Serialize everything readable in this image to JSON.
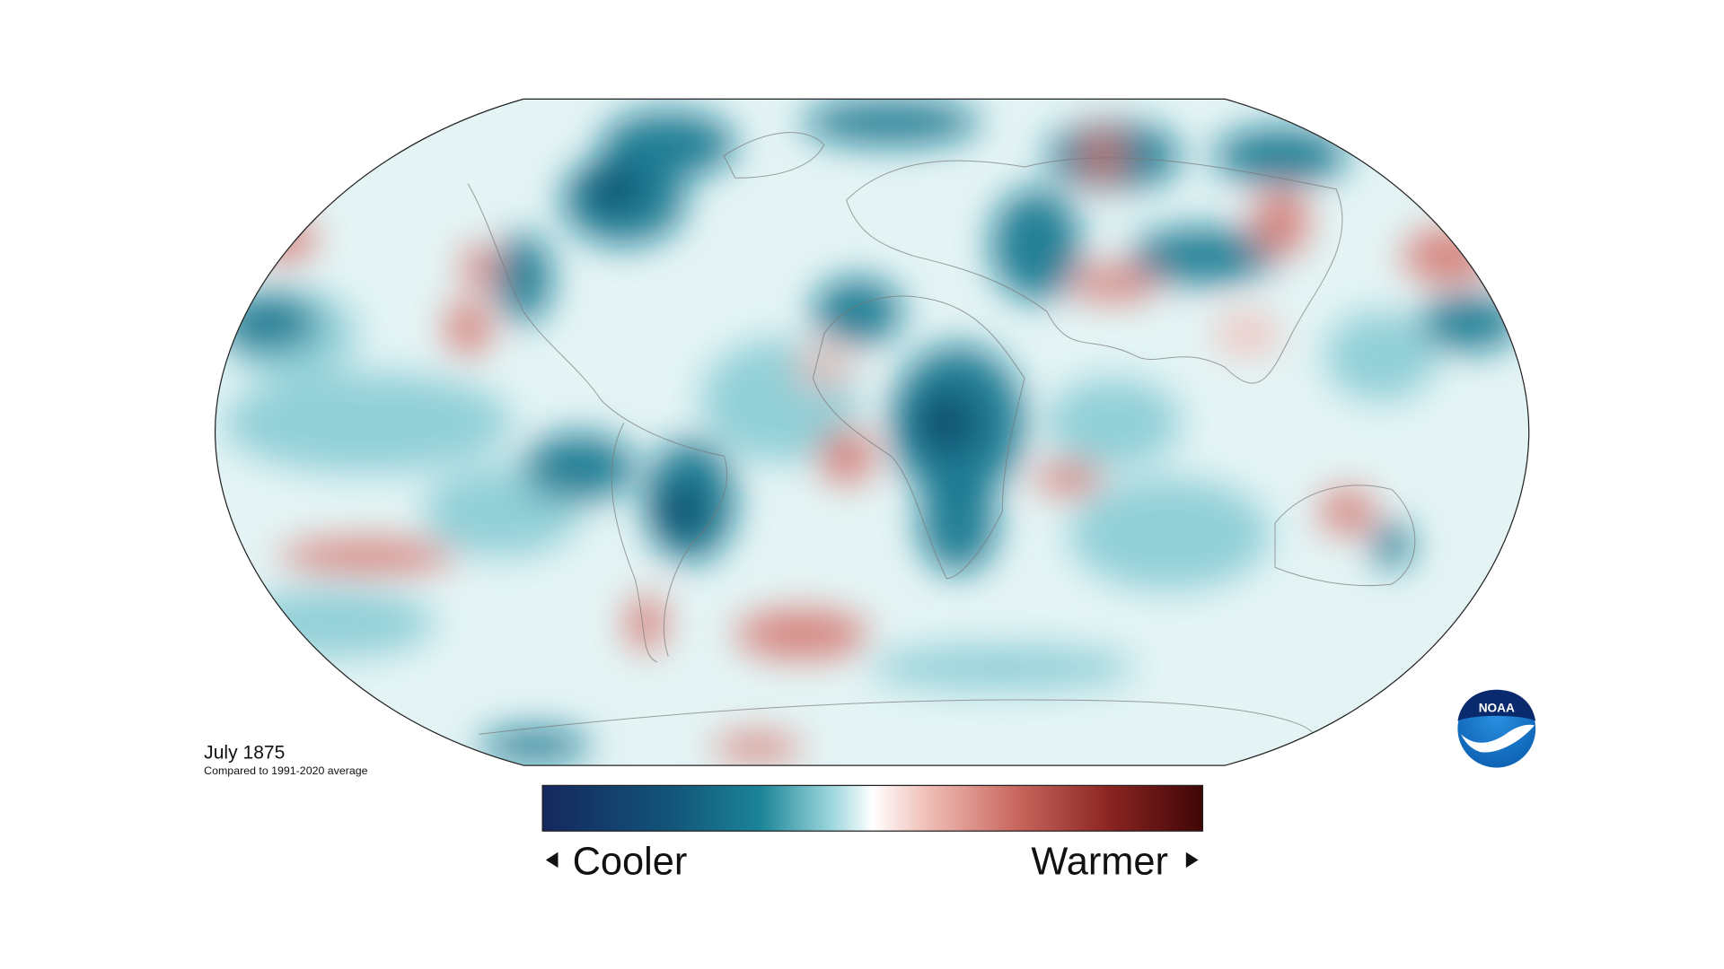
{
  "map": {
    "title": "July 1875",
    "subtitle": "Compared to 1991-2020 average"
  },
  "legend": {
    "low_label": "Cooler",
    "high_label": "Warmer"
  },
  "logo": {
    "text": "NOAA"
  }
}
